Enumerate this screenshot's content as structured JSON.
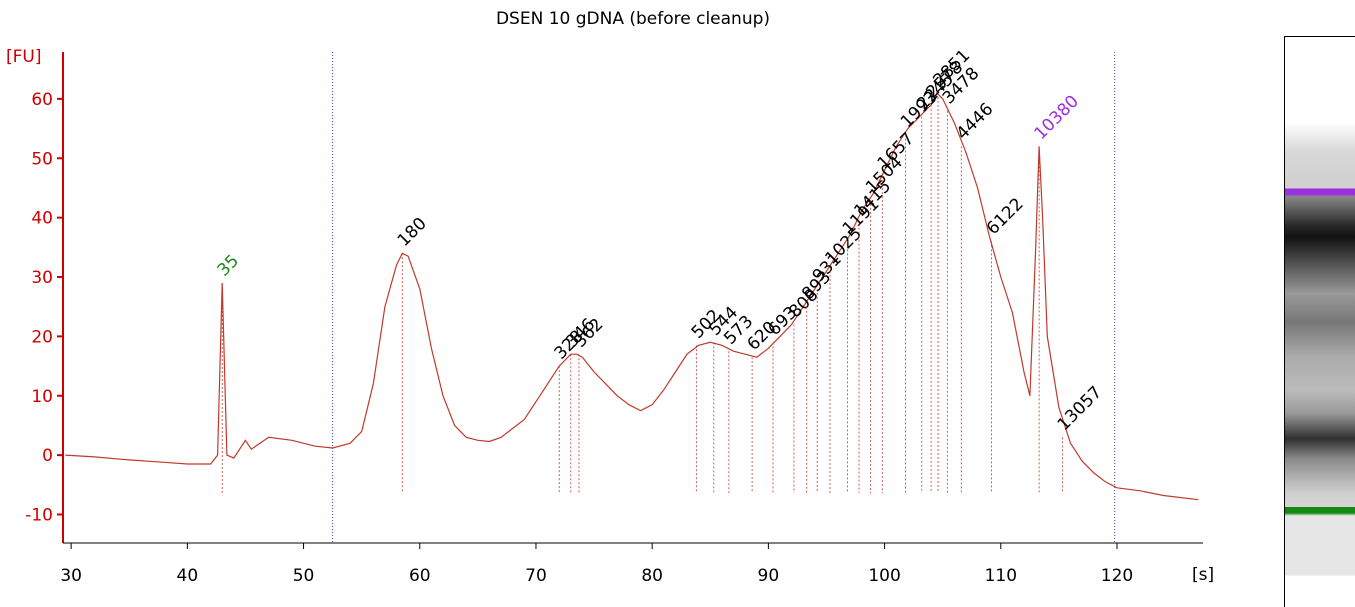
{
  "chart_data": {
    "type": "line",
    "title": "DSEN 10 gDNA (before cleanup)",
    "y_label": "[FU]",
    "x_label": "[s]",
    "xlim": [
      29.3,
      127.4
    ],
    "ylim": [
      -14.8,
      67.9
    ],
    "xticks": [
      30,
      40,
      50,
      60,
      70,
      80,
      90,
      100,
      110,
      120
    ],
    "yticks": [
      -10,
      0,
      10,
      20,
      30,
      40,
      50,
      60
    ],
    "grid": false,
    "color": "#c0392b",
    "x": [
      29.5,
      32,
      35,
      38,
      40,
      42,
      42.6,
      43,
      43.4,
      44,
      45,
      45.5,
      47,
      49,
      51,
      52.5,
      54,
      55,
      56,
      57,
      58,
      58.5,
      59,
      60,
      61,
      62,
      63,
      64,
      65,
      66,
      67,
      68,
      69,
      70,
      71,
      72,
      73,
      73.5,
      74,
      75,
      76,
      77,
      78,
      79,
      80,
      81,
      82,
      83,
      84,
      85,
      86,
      87,
      88,
      89,
      90,
      91,
      92,
      93,
      94,
      95,
      96,
      97,
      98,
      99,
      100,
      101,
      102,
      103,
      104,
      104.5,
      105,
      106,
      107,
      108,
      109,
      110,
      111,
      112,
      112.5,
      113,
      113.3,
      113.6,
      114,
      115,
      116,
      117,
      118,
      119,
      120,
      122,
      124,
      127
    ],
    "values": [
      0,
      -0.3,
      -0.8,
      -1.2,
      -1.5,
      -1.5,
      0,
      29,
      0,
      -0.5,
      2.5,
      1,
      3,
      2.5,
      1.5,
      1.2,
      2,
      4,
      12,
      25,
      32,
      34,
      33.5,
      28,
      18,
      10,
      5,
      3,
      2.5,
      2.3,
      3,
      4.5,
      6,
      9,
      12,
      15,
      17,
      17,
      16.5,
      14,
      12,
      10,
      8.5,
      7.5,
      8.5,
      11,
      14,
      17,
      18.5,
      19,
      18.5,
      17.5,
      17,
      16.5,
      18,
      20,
      22,
      25,
      28,
      31,
      34,
      37,
      41,
      44,
      48,
      52,
      55,
      57,
      59,
      61,
      60,
      56,
      51,
      45,
      37,
      30,
      24,
      14,
      10,
      35,
      52,
      40,
      20,
      8,
      2,
      -1,
      -3,
      -4.5,
      -5.5,
      -6,
      -6.8,
      -7.5
    ],
    "markers_x": [
      52.5,
      119.8
    ],
    "peaks": [
      {
        "x": 43,
        "y": 29,
        "label": "35",
        "color": "#1a8a1a"
      },
      {
        "x": 58.5,
        "y": 34,
        "label": "180",
        "color": "#000000"
      },
      {
        "x": 72,
        "y": 15,
        "label": "328",
        "color": "#000000"
      },
      {
        "x": 73,
        "y": 17,
        "label": "346",
        "color": "#000000"
      },
      {
        "x": 73.7,
        "y": 17,
        "label": "362",
        "color": "#000000"
      },
      {
        "x": 83.8,
        "y": 18.5,
        "label": "502",
        "color": "#000000"
      },
      {
        "x": 85.3,
        "y": 19,
        "label": "544",
        "color": "#000000"
      },
      {
        "x": 86.6,
        "y": 17.5,
        "label": "573",
        "color": "#000000"
      },
      {
        "x": 88.6,
        "y": 16.5,
        "label": "620",
        "color": "#000000"
      },
      {
        "x": 90.4,
        "y": 19,
        "label": "693",
        "color": "#000000"
      },
      {
        "x": 92.2,
        "y": 22,
        "label": "808",
        "color": "#000000"
      },
      {
        "x": 93.3,
        "y": 25,
        "label": "893",
        "color": "#000000"
      },
      {
        "x": 94.2,
        "y": 28,
        "label": "931",
        "color": "#000000"
      },
      {
        "x": 95.3,
        "y": 31,
        "label": "1025",
        "color": "#000000"
      },
      {
        "x": 96.8,
        "y": 36,
        "label": "1191",
        "color": "#000000"
      },
      {
        "x": 97.8,
        "y": 39,
        "label": "1415",
        "color": "#000000"
      },
      {
        "x": 98.8,
        "y": 43,
        "label": "1504",
        "color": "#000000"
      },
      {
        "x": 99.8,
        "y": 47,
        "label": "1657",
        "color": "#000000"
      },
      {
        "x": 101.8,
        "y": 54,
        "label": "1993",
        "color": "#000000"
      },
      {
        "x": 103.2,
        "y": 57,
        "label": "2245",
        "color": "#000000"
      },
      {
        "x": 104,
        "y": 59,
        "label": "2578",
        "color": "#000000"
      },
      {
        "x": 104.6,
        "y": 61,
        "label": "2851",
        "color": "#000000"
      },
      {
        "x": 105.4,
        "y": 58,
        "label": "3478",
        "color": "#000000"
      },
      {
        "x": 106.6,
        "y": 52,
        "label": "4446",
        "color": "#000000"
      },
      {
        "x": 109.2,
        "y": 36,
        "label": "6122",
        "color": "#000000"
      },
      {
        "x": 113.3,
        "y": 52,
        "label": "10380",
        "color": "#9b30e0"
      },
      {
        "x": 115.3,
        "y": 3,
        "label": "13057",
        "color": "#000000"
      }
    ]
  }
}
